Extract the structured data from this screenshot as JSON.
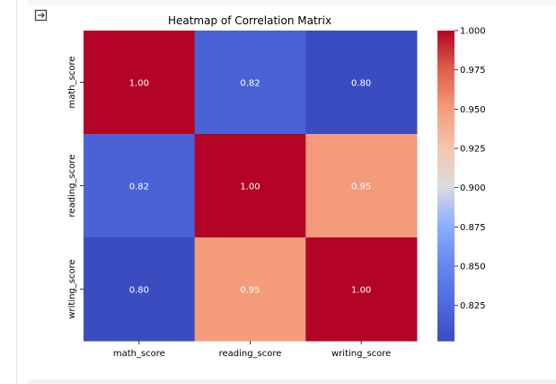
{
  "cell": {
    "output_icon": "output-redirect-icon"
  },
  "chart_data": {
    "type": "heatmap",
    "title": "Heatmap of Correlation Matrix",
    "x_labels": [
      "math_score",
      "reading_score",
      "writing_score"
    ],
    "y_labels": [
      "math_score",
      "reading_score",
      "writing_score"
    ],
    "values": [
      [
        1.0,
        0.82,
        0.8
      ],
      [
        0.82,
        1.0,
        0.95
      ],
      [
        0.8,
        0.95,
        1.0
      ]
    ],
    "annotations": [
      [
        "1.00",
        "0.82",
        "0.80"
      ],
      [
        "0.82",
        "1.00",
        "0.95"
      ],
      [
        "0.80",
        "0.95",
        "1.00"
      ]
    ],
    "colormap": "coolwarm",
    "colorbar": {
      "range": [
        0.8025,
        1.0
      ],
      "ticks": [
        1.0,
        0.975,
        0.95,
        0.925,
        0.9,
        0.875,
        0.85,
        0.825
      ],
      "tick_labels": [
        "1.000",
        "0.975",
        "0.950",
        "0.925",
        "0.900",
        "0.875",
        "0.850",
        "0.825"
      ]
    }
  }
}
